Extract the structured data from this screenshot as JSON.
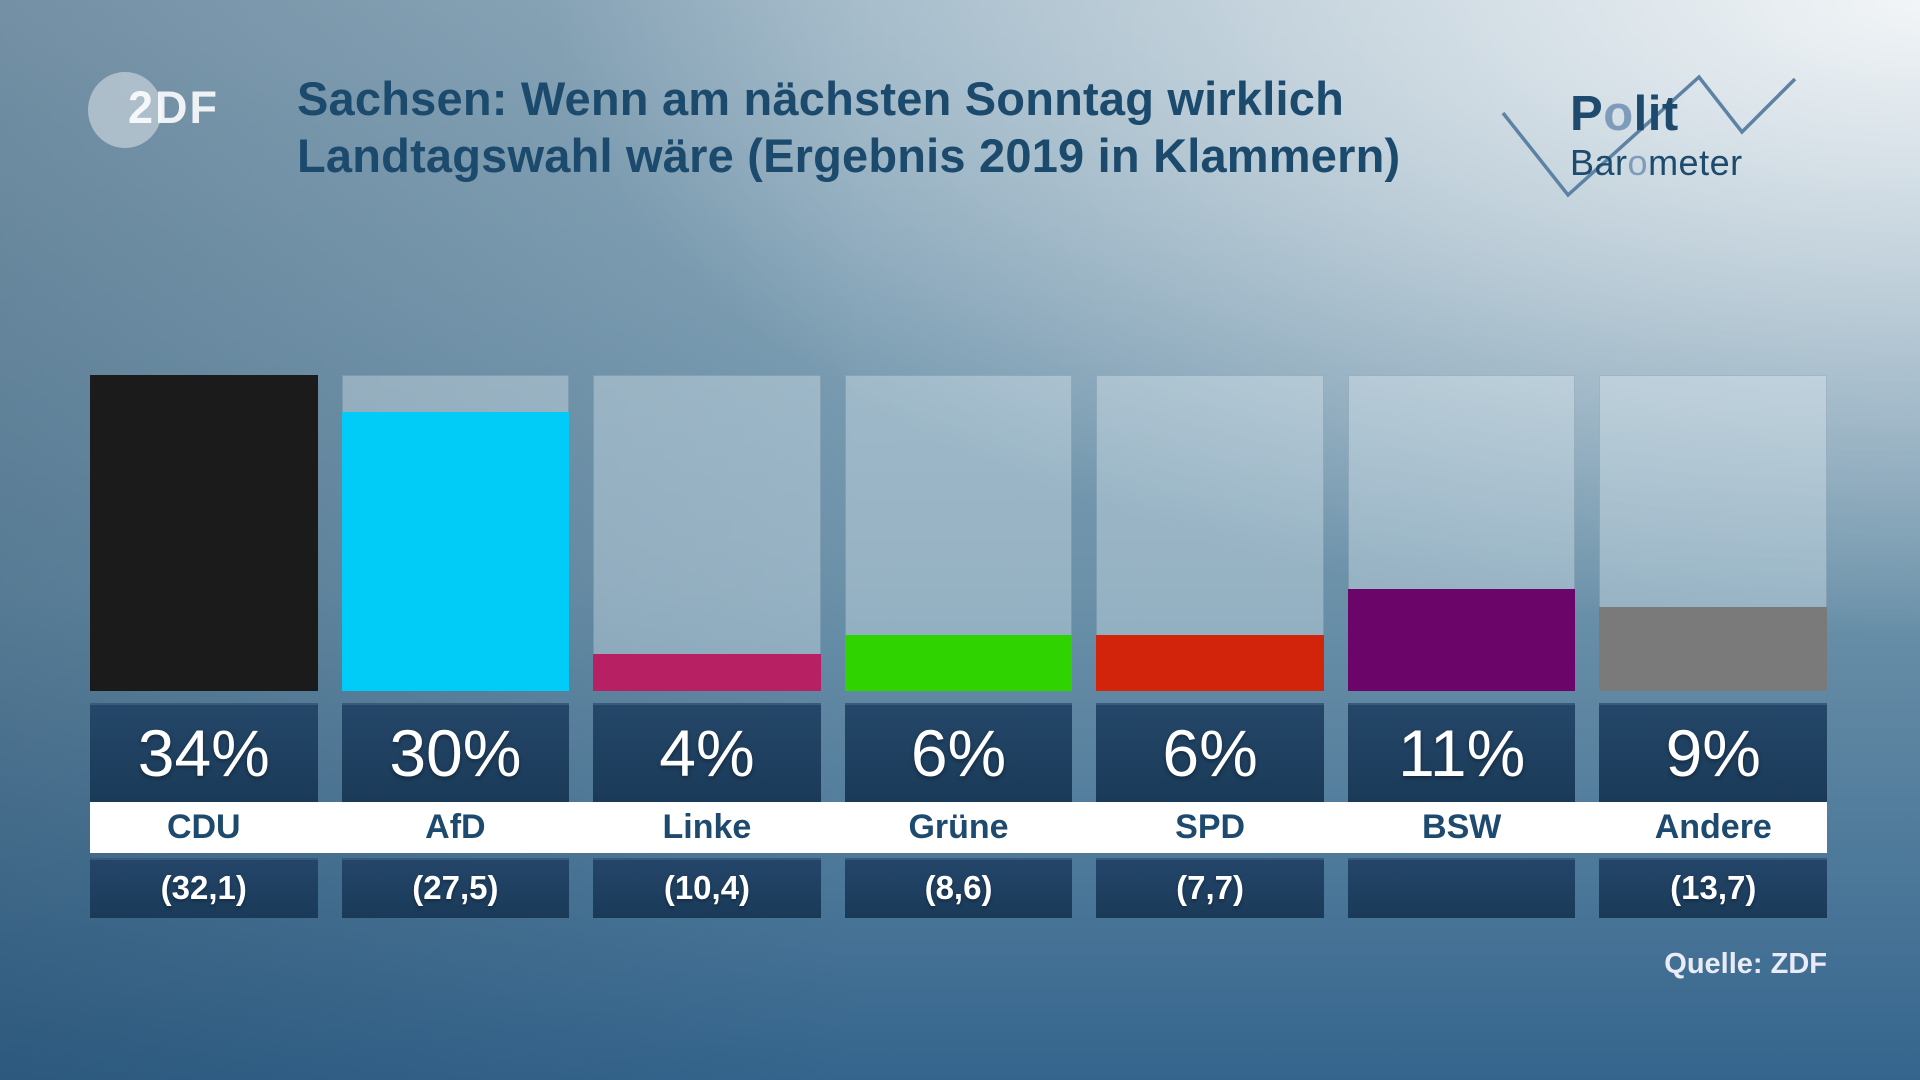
{
  "header": {
    "zdf_logo_text": "2DF",
    "title_line1": "Sachsen: Wenn am nächsten Sonntag wirklich",
    "title_line2": "Landtagswahl wäre (Ergebnis 2019 in Klammern)",
    "brand": {
      "polit_p": "P",
      "polit_o": "o",
      "polit_rest": "lit",
      "baro_pre": "Bar",
      "baro_o": "o",
      "baro_rest": "meter"
    }
  },
  "source": "Quelle: ZDF",
  "chart_data": {
    "type": "bar",
    "title": "Sachsen: Wenn am nächsten Sonntag wirklich Landtagswahl wäre (Ergebnis 2019 in Klammern)",
    "unit": "percent",
    "ylim": [
      0,
      34
    ],
    "grid": false,
    "legend_position": "none",
    "categories": [
      "CDU",
      "AfD",
      "Linke",
      "Grüne",
      "SPD",
      "BSW",
      "Andere"
    ],
    "values": [
      34,
      30,
      4,
      6,
      6,
      11,
      9
    ],
    "value_labels": [
      "34%",
      "30%",
      "4%",
      "6%",
      "6%",
      "11%",
      "9%"
    ],
    "result_2019": [
      32.1,
      27.5,
      10.4,
      8.6,
      7.7,
      null,
      13.7
    ],
    "result_2019_labels": [
      "(32,1)",
      "(27,5)",
      "(10,4)",
      "(8,6)",
      "(7,7)",
      "",
      "(13,7)"
    ],
    "bar_colors": [
      "#1b1b1b",
      "#00ccf7",
      "#b72163",
      "#2fd400",
      "#d2230b",
      "#6b0569",
      "#7a7a7a"
    ]
  },
  "colors": {
    "title_text": "#1b4a6d",
    "value_box": "#1e3d5c",
    "value_text": "#ffffff",
    "party_band": "#ffffff",
    "party_text": "#1d4a6e",
    "zigzag": "#5d82a3"
  }
}
